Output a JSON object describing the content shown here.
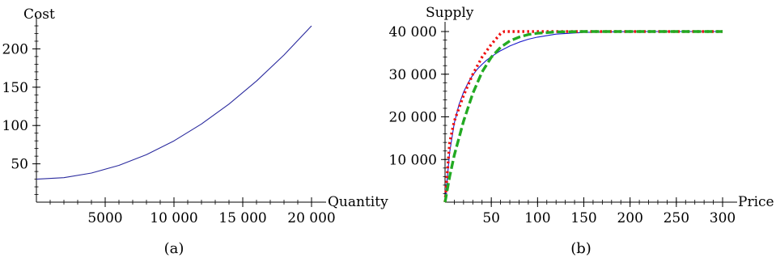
{
  "chart_data": [
    {
      "type": "line",
      "panel_label": "(a)",
      "xlabel": "Quantity",
      "ylabel": "Cost",
      "xlim": [
        0,
        20000
      ],
      "ylim": [
        0,
        230
      ],
      "x_tick_values": [
        5000,
        10000,
        15000,
        20000
      ],
      "x_tick_labels": [
        "5000",
        "10 000",
        "15 000",
        "20 000"
      ],
      "y_tick_values": [
        50,
        100,
        150,
        200
      ],
      "y_tick_labels": [
        "50",
        "100",
        "150",
        "200"
      ],
      "grid": false,
      "series": [
        {
          "color": "#2b2b9e",
          "style": "solid",
          "x": [
            0,
            2000,
            4000,
            6000,
            8000,
            10000,
            12000,
            14000,
            16000,
            18000,
            20000
          ],
          "y": [
            30,
            32,
            38,
            48,
            62,
            80,
            102,
            128,
            158,
            192,
            230
          ]
        }
      ]
    },
    {
      "type": "line",
      "panel_label": "(b)",
      "xlabel": "Price",
      "ylabel": "Supply",
      "xlim": [
        0,
        300
      ],
      "ylim": [
        0,
        40000
      ],
      "x_tick_values": [
        50,
        100,
        150,
        200,
        250,
        300
      ],
      "x_tick_labels": [
        "50",
        "100",
        "150",
        "200",
        "250",
        "300"
      ],
      "y_tick_values": [
        10000,
        20000,
        30000,
        40000
      ],
      "y_tick_labels": [
        "10 000",
        "20 000",
        "30 000",
        "40 000"
      ],
      "grid": false,
      "series": [
        {
          "color": "#1a1acc",
          "style": "solid",
          "x": [
            0,
            5,
            10,
            15,
            20,
            25,
            30,
            35,
            40,
            45,
            50,
            60,
            70,
            80,
            90,
            100,
            120,
            150,
            200,
            300
          ],
          "y": [
            0,
            11700,
            18500,
            22800,
            25800,
            28000,
            29800,
            31200,
            32300,
            33300,
            34100,
            35500,
            36600,
            37500,
            38200,
            38700,
            39400,
            39800,
            40000,
            40000
          ]
        },
        {
          "color": "#ee1111",
          "style": "dotted",
          "x": [
            0,
            5,
            10,
            20,
            30,
            40,
            50,
            60,
            64,
            100,
            300
          ],
          "y": [
            0,
            14000,
            19000,
            25000,
            30000,
            34000,
            37000,
            39500,
            40000,
            40000,
            40000
          ]
        },
        {
          "color": "#22aa22",
          "style": "dashed",
          "x": [
            0,
            5,
            10,
            20,
            30,
            40,
            50,
            60,
            70,
            80,
            90,
            100,
            120,
            150,
            300
          ],
          "y": [
            0,
            6000,
            11000,
            19000,
            25500,
            30500,
            34000,
            36300,
            37800,
            38700,
            39300,
            39600,
            39900,
            40000,
            40000
          ]
        }
      ]
    }
  ]
}
